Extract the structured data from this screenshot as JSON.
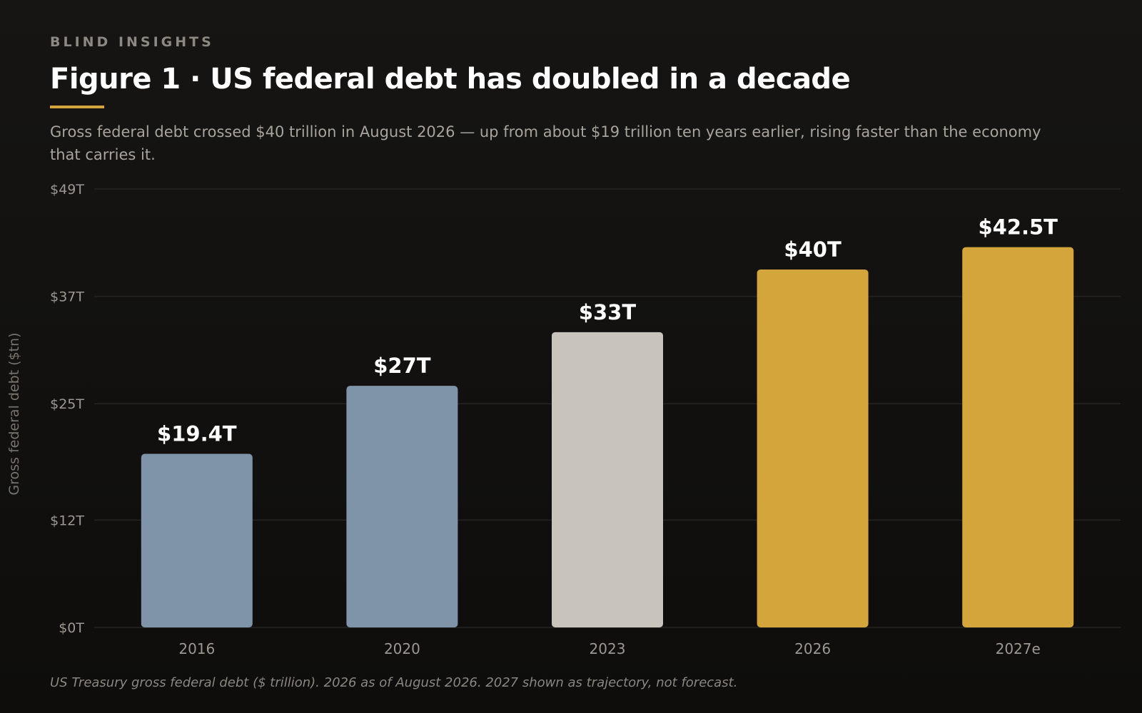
{
  "header": {
    "eyebrow": "BLIND INSIGHTS",
    "title": "Figure 1 · US federal debt has doubled in a decade",
    "subtitle": "Gross federal debt crossed $40 trillion in August 2026 — up from about $19 trillion ten years earlier, rising faster than the economy that carries it."
  },
  "footnote": "US Treasury gross federal debt ($ trillion). 2026 as of August 2026. 2027 shown as trajectory, not forecast.",
  "colors": {
    "accent": "#d4a53a",
    "historical": "#7f94a8",
    "midpoint": "#c8c3bb",
    "gridline": "#262422",
    "tick_text": "#9c9891",
    "value_label": "#ffffff"
  },
  "chart_data": {
    "type": "bar",
    "title": "Figure 1 · US federal debt has doubled in a decade",
    "xlabel": "",
    "ylabel": "Gross federal debt ($tn)",
    "ylim": [
      0,
      49
    ],
    "yticks": [
      0,
      12,
      25,
      37,
      49
    ],
    "ytick_labels": [
      "$0T",
      "$12T",
      "$25T",
      "$37T",
      "$49T"
    ],
    "categories": [
      "2016",
      "2020",
      "2023",
      "2026",
      "2027e"
    ],
    "values": [
      19.4,
      27,
      33,
      40,
      42.5
    ],
    "value_labels": [
      "$19.4T",
      "$27T",
      "$33T",
      "$40T",
      "$42.5T"
    ],
    "bar_colors": [
      "#7f94a8",
      "#7f94a8",
      "#c8c3bb",
      "#d4a53a",
      "#d4a53a"
    ],
    "grid": true,
    "legend": "none"
  }
}
